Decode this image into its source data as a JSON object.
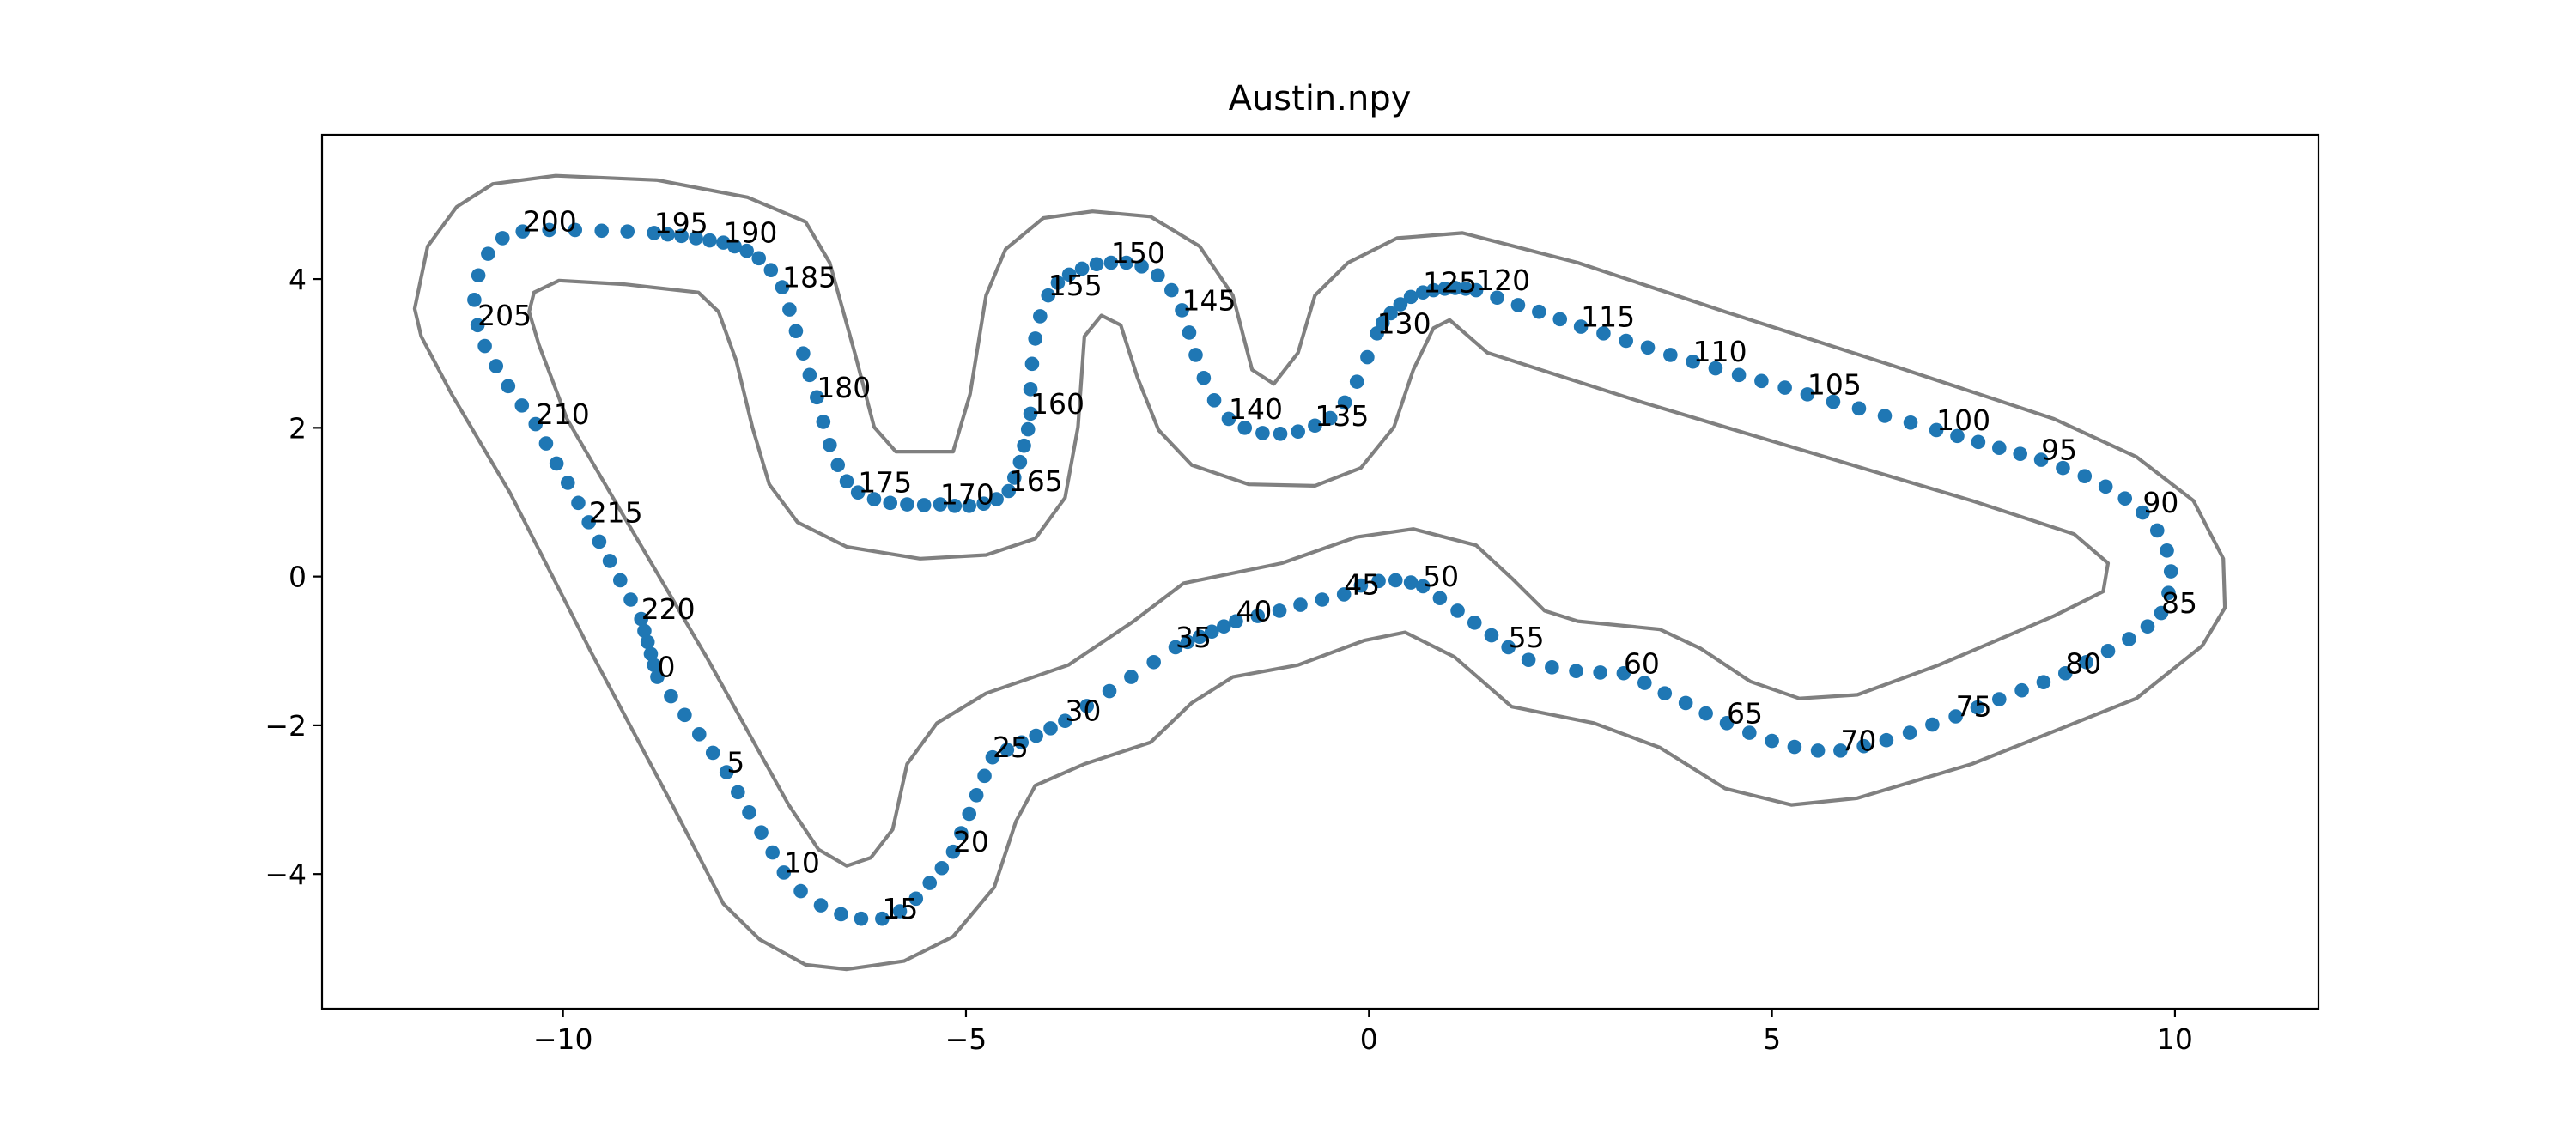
{
  "chart_data": {
    "type": "scatter",
    "title": "Austin.npy",
    "xlim": [
      -12.99,
      11.78
    ],
    "ylim": [
      -5.81,
      5.94
    ],
    "xticks": [
      {
        "value": -10,
        "label": "−10"
      },
      {
        "value": -5,
        "label": "−5"
      },
      0,
      5,
      10
    ],
    "yticks": [
      {
        "value": -4,
        "label": "−4"
      },
      {
        "value": -2,
        "label": "−2"
      },
      0,
      2,
      4
    ],
    "series": [
      {
        "color": "#1f77b4",
        "x": [
          -8.83,
          -8.66,
          -8.49,
          -8.31,
          -8.14,
          -7.97,
          -7.83,
          -7.69,
          -7.54,
          -7.4,
          -7.26,
          -7.05,
          -6.8,
          -6.55,
          -6.3,
          -6.04,
          -5.82,
          -5.62,
          -5.45,
          -5.3,
          -5.16,
          -5.06,
          -4.96,
          -4.87,
          -4.77,
          -4.67,
          -4.49,
          -4.31,
          -4.13,
          -3.95,
          -3.77,
          -3.5,
          -3.22,
          -2.95,
          -2.67,
          -2.4,
          -2.25,
          -2.1,
          -1.95,
          -1.8,
          -1.65,
          -1.38,
          -1.11,
          -0.85,
          -0.58,
          -0.31,
          -0.1,
          0.12,
          0.33,
          0.52,
          0.67,
          0.88,
          1.1,
          1.31,
          1.52,
          1.73,
          1.98,
          2.27,
          2.57,
          2.87,
          3.16,
          3.42,
          3.67,
          3.93,
          4.18,
          4.44,
          4.72,
          5.0,
          5.28,
          5.57,
          5.85,
          6.14,
          6.42,
          6.71,
          6.99,
          7.28,
          7.55,
          7.82,
          8.1,
          8.37,
          8.64,
          8.9,
          9.17,
          9.43,
          9.66,
          9.83,
          9.92,
          9.95,
          9.9,
          9.78,
          9.6,
          9.38,
          9.14,
          8.88,
          8.61,
          8.34,
          8.08,
          7.82,
          7.56,
          7.3,
          7.04,
          6.72,
          6.4,
          6.08,
          5.76,
          5.44,
          5.16,
          4.87,
          4.59,
          4.3,
          4.02,
          3.74,
          3.46,
          3.19,
          2.91,
          2.63,
          2.37,
          2.11,
          1.85,
          1.59,
          1.33,
          1.2,
          1.07,
          0.94,
          0.8,
          0.67,
          0.52,
          0.39,
          0.27,
          0.17,
          0.1,
          -0.02,
          -0.15,
          -0.3,
          -0.48,
          -0.67,
          -0.88,
          -1.1,
          -1.32,
          -1.54,
          -1.74,
          -1.92,
          -2.05,
          -2.15,
          -2.23,
          -2.32,
          -2.45,
          -2.62,
          -2.82,
          -3.01,
          -3.2,
          -3.38,
          -3.56,
          -3.72,
          -3.86,
          -3.98,
          -4.08,
          -4.14,
          -4.18,
          -4.2,
          -4.2,
          -4.23,
          -4.28,
          -4.33,
          -4.4,
          -4.47,
          -4.62,
          -4.78,
          -4.96,
          -5.14,
          -5.32,
          -5.52,
          -5.73,
          -5.94,
          -6.14,
          -6.34,
          -6.48,
          -6.59,
          -6.69,
          -6.77,
          -6.85,
          -6.94,
          -7.02,
          -7.11,
          -7.19,
          -7.28,
          -7.42,
          -7.57,
          -7.72,
          -7.87,
          -8.01,
          -8.18,
          -8.35,
          -8.53,
          -8.7,
          -8.87,
          -9.2,
          -9.52,
          -9.85,
          -10.17,
          -10.5,
          -10.75,
          -10.93,
          -11.05,
          -11.1,
          -11.06,
          -10.97,
          -10.83,
          -10.68,
          -10.51,
          -10.34,
          -10.21,
          -10.08,
          -9.94,
          -9.81,
          -9.68,
          -9.55,
          -9.42,
          -9.29,
          -9.16,
          -9.03,
          -8.99,
          -8.95,
          -8.91,
          -8.87
        ],
        "y": [
          -1.35,
          -1.61,
          -1.86,
          -2.12,
          -2.37,
          -2.63,
          -2.9,
          -3.17,
          -3.44,
          -3.71,
          -3.98,
          -4.23,
          -4.42,
          -4.54,
          -4.6,
          -4.6,
          -4.5,
          -4.33,
          -4.12,
          -3.92,
          -3.7,
          -3.45,
          -3.19,
          -2.94,
          -2.68,
          -2.43,
          -2.33,
          -2.23,
          -2.14,
          -2.04,
          -1.94,
          -1.74,
          -1.54,
          -1.35,
          -1.15,
          -0.95,
          -0.88,
          -0.81,
          -0.74,
          -0.67,
          -0.6,
          -0.53,
          -0.46,
          -0.38,
          -0.31,
          -0.24,
          -0.12,
          -0.06,
          -0.05,
          -0.08,
          -0.13,
          -0.29,
          -0.46,
          -0.62,
          -0.79,
          -0.95,
          -1.12,
          -1.22,
          -1.27,
          -1.29,
          -1.3,
          -1.43,
          -1.57,
          -1.7,
          -1.84,
          -1.97,
          -2.1,
          -2.21,
          -2.29,
          -2.34,
          -2.34,
          -2.28,
          -2.2,
          -2.1,
          -1.99,
          -1.88,
          -1.76,
          -1.65,
          -1.53,
          -1.42,
          -1.3,
          -1.15,
          -1.0,
          -0.84,
          -0.67,
          -0.49,
          -0.22,
          0.07,
          0.35,
          0.62,
          0.86,
          1.05,
          1.21,
          1.35,
          1.46,
          1.57,
          1.65,
          1.73,
          1.81,
          1.89,
          1.97,
          2.07,
          2.16,
          2.26,
          2.35,
          2.45,
          2.54,
          2.63,
          2.71,
          2.8,
          2.89,
          2.98,
          3.08,
          3.17,
          3.27,
          3.36,
          3.46,
          3.56,
          3.65,
          3.75,
          3.85,
          3.87,
          3.88,
          3.87,
          3.85,
          3.82,
          3.76,
          3.66,
          3.54,
          3.41,
          3.27,
          2.95,
          2.62,
          2.34,
          2.13,
          2.03,
          1.95,
          1.92,
          1.93,
          2.0,
          2.12,
          2.37,
          2.67,
          2.98,
          3.28,
          3.58,
          3.85,
          4.05,
          4.17,
          4.22,
          4.22,
          4.2,
          4.14,
          4.06,
          3.95,
          3.78,
          3.5,
          3.2,
          2.86,
          2.52,
          2.19,
          1.98,
          1.76,
          1.54,
          1.33,
          1.15,
          1.04,
          0.98,
          0.95,
          0.95,
          0.97,
          0.96,
          0.97,
          0.99,
          1.04,
          1.13,
          1.28,
          1.5,
          1.77,
          2.08,
          2.41,
          2.71,
          3.0,
          3.3,
          3.59,
          3.89,
          4.12,
          4.28,
          4.38,
          4.44,
          4.49,
          4.52,
          4.55,
          4.58,
          4.6,
          4.62,
          4.64,
          4.65,
          4.66,
          4.66,
          4.64,
          4.55,
          4.34,
          4.05,
          3.72,
          3.38,
          3.1,
          2.83,
          2.56,
          2.3,
          2.05,
          1.79,
          1.52,
          1.26,
          0.99,
          0.73,
          0.47,
          0.21,
          -0.05,
          -0.31,
          -0.57,
          -0.73,
          -0.88,
          -1.04,
          -1.19
        ]
      }
    ],
    "point_labels": [
      0,
      5,
      10,
      15,
      20,
      25,
      30,
      35,
      40,
      45,
      50,
      55,
      60,
      65,
      70,
      75,
      80,
      85,
      90,
      95,
      100,
      105,
      110,
      115,
      120,
      125,
      130,
      135,
      140,
      145,
      150,
      155,
      160,
      165,
      170,
      175,
      180,
      185,
      190,
      195,
      200,
      205,
      210,
      215,
      220
    ],
    "lines": [
      {
        "color": "#808080",
        "x": [
          -10.09,
          -8.83,
          -7.71,
          -6.99,
          -6.69,
          -6.38,
          -6.14,
          -5.87,
          -5.16,
          -4.95,
          -4.75,
          -4.51,
          -4.04,
          -3.43,
          -2.71,
          -2.1,
          -1.69,
          -1.45,
          -1.18,
          -0.88,
          -0.67,
          -0.26,
          0.35,
          1.16,
          2.59,
          4.42,
          6.46,
          8.5,
          9.52,
          10.23,
          10.6,
          10.62,
          10.34,
          9.52,
          7.48,
          6.06,
          5.24,
          4.42,
          3.61,
          2.79,
          1.77,
          1.06,
          0.45,
          -0.06,
          -0.88,
          -1.69,
          -2.2,
          -2.71,
          -3.53,
          -4.14,
          -4.38,
          -4.65,
          -5.16,
          -5.77,
          -6.48,
          -6.99,
          -7.56,
          -8.01,
          -8.62,
          -9.64,
          -10.66,
          -11.38,
          -11.76,
          -11.84,
          -11.68,
          -11.32,
          -10.87
        ],
        "y": [
          5.39,
          5.33,
          5.1,
          4.77,
          4.22,
          3.01,
          2.01,
          1.68,
          1.68,
          2.45,
          3.78,
          4.4,
          4.82,
          4.91,
          4.84,
          4.44,
          3.78,
          2.78,
          2.59,
          3.01,
          3.78,
          4.22,
          4.55,
          4.62,
          4.22,
          3.56,
          2.85,
          2.12,
          1.61,
          1.02,
          0.24,
          -0.42,
          -0.93,
          -1.64,
          -2.52,
          -2.98,
          -3.07,
          -2.85,
          -2.3,
          -1.97,
          -1.75,
          -1.08,
          -0.75,
          -0.86,
          -1.19,
          -1.35,
          -1.7,
          -2.23,
          -2.52,
          -2.81,
          -3.29,
          -4.18,
          -4.84,
          -5.17,
          -5.28,
          -5.22,
          -4.88,
          -4.4,
          -3.12,
          -1.04,
          1.13,
          2.45,
          3.23,
          3.6,
          4.44,
          4.97,
          5.28
        ]
      },
      {
        "color": "#808080",
        "x": [
          -10.36,
          -10.05,
          -9.24,
          -8.32,
          -8.07,
          -7.85,
          -7.65,
          -7.44,
          -7.09,
          -6.48,
          -5.57,
          -4.75,
          -4.14,
          -3.77,
          -3.61,
          -3.53,
          -3.32,
          -3.08,
          -2.87,
          -2.61,
          -2.2,
          -1.49,
          -0.67,
          -0.1,
          0.31,
          0.55,
          0.8,
          1.0,
          1.47,
          3.4,
          5.44,
          7.48,
          8.75,
          9.17,
          9.11,
          8.5,
          7.07,
          6.06,
          5.34,
          4.73,
          4.12,
          3.61,
          2.59,
          2.18,
          1.77,
          1.33,
          0.55,
          -0.16,
          -1.08,
          -2.3,
          -2.92,
          -3.73,
          -4.75,
          -5.36,
          -5.73,
          -5.91,
          -6.18,
          -6.48,
          -6.83,
          -7.2,
          -8.22,
          -9.24,
          -9.95,
          -10.3,
          -10.42
        ],
        "y": [
          3.82,
          3.98,
          3.93,
          3.82,
          3.56,
          2.9,
          2.01,
          1.24,
          0.73,
          0.4,
          0.24,
          0.29,
          0.51,
          1.06,
          2.01,
          3.23,
          3.51,
          3.38,
          2.67,
          1.97,
          1.5,
          1.24,
          1.22,
          1.46,
          2.01,
          2.78,
          3.34,
          3.45,
          3.01,
          2.34,
          1.68,
          1.02,
          0.57,
          0.18,
          -0.2,
          -0.53,
          -1.19,
          -1.59,
          -1.64,
          -1.41,
          -0.97,
          -0.71,
          -0.6,
          -0.46,
          -0.02,
          0.42,
          0.64,
          0.53,
          0.18,
          -0.09,
          -0.6,
          -1.19,
          -1.57,
          -1.97,
          -2.52,
          -3.4,
          -3.78,
          -3.89,
          -3.67,
          -3.07,
          -1.08,
          0.8,
          2.12,
          3.12,
          3.56
        ]
      }
    ]
  }
}
